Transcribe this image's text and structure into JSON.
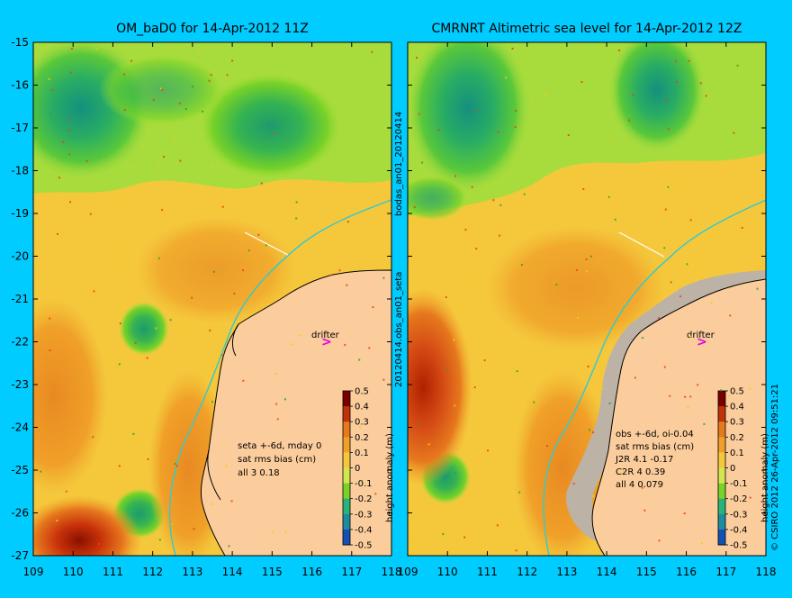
{
  "left_panel": {
    "title": "OM_baD0 for 14-Apr-2012 11Z",
    "stats": [
      "seta +-6d, mday 0",
      "sat rms bias (cm)",
      "all 3 0.18"
    ],
    "drifter_label": "drifter"
  },
  "right_panel": {
    "title": "CMRNRT Altimetric sea level  for 14-Apr-2012 12Z",
    "stats": [
      "obs +-6d, oi-0.04",
      "sat rms bias (cm)",
      "J2R   4.1 -0.17",
      "C2R   4 0.39",
      "all 4 0.079"
    ],
    "drifter_label": "drifter"
  },
  "axes": {
    "lat_ticks": [
      "-15",
      "-16",
      "-17",
      "-18",
      "-19",
      "-20",
      "-21",
      "-22",
      "-23",
      "-24",
      "-25",
      "-26",
      "-27"
    ],
    "lon_ticks": [
      "109",
      "110",
      "111",
      "112",
      "113",
      "114",
      "115",
      "116",
      "117",
      "118"
    ]
  },
  "colorbar": {
    "label": "height anomaly (m)",
    "ticks": [
      "0.5",
      "0.4",
      "0.3",
      "0.2",
      "0.1",
      "0",
      "-0.1",
      "-0.2",
      "-0.3",
      "-0.4",
      "-0.5"
    ],
    "colors": [
      "#7a0000",
      "#c0320a",
      "#e6781e",
      "#f0a028",
      "#f5c83c",
      "#d2e650",
      "#78d228",
      "#28b478",
      "#1e8ca0",
      "#1450b4",
      "#0a1e8c"
    ]
  },
  "middle_labels": {
    "top": "bodas_an01_20120414",
    "bottom": "20120414.obs_an01_seta"
  },
  "credit": {
    "text": "© CSIRO 2012   26-Apr-2012 09:51:21"
  },
  "colors": {
    "background": "#00ccff",
    "land": "#fbcc9c",
    "coastline": "#000000",
    "drifter": "#e000e0",
    "contour_line": "#3cc8c8"
  }
}
